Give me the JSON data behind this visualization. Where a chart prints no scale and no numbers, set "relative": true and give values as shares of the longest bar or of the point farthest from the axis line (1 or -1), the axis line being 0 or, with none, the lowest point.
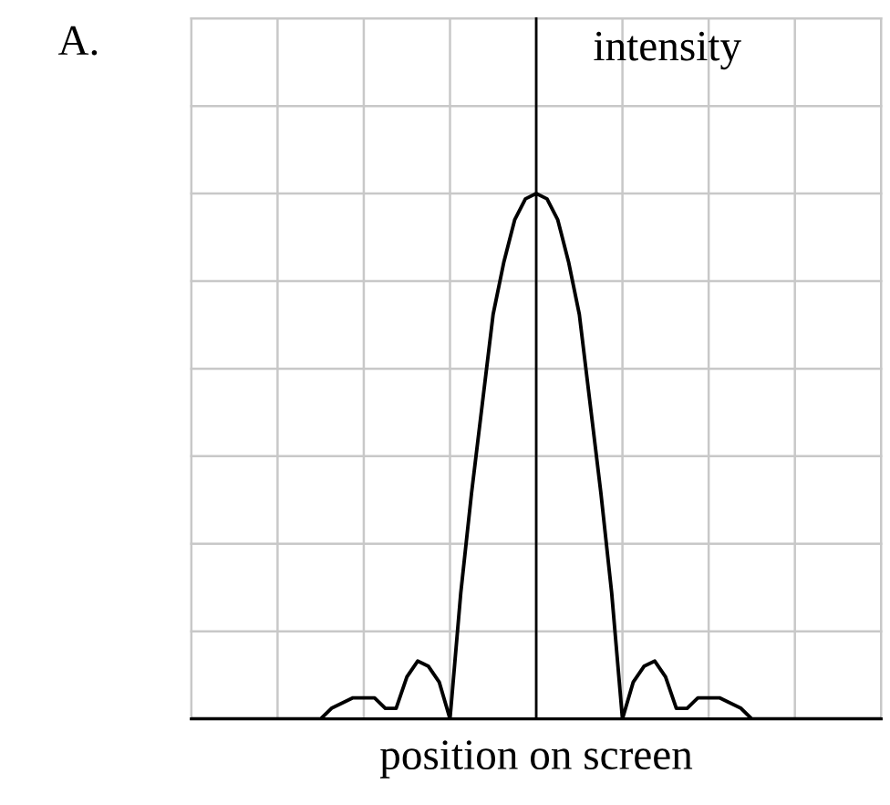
{
  "chart_data": {
    "type": "line",
    "title": "A.",
    "xlabel": "position on screen",
    "ylabel": "intensity",
    "relative": true,
    "categories": [
      null,
      null,
      null,
      null,
      null,
      null,
      null,
      null,
      null,
      null,
      null,
      null,
      null,
      null,
      null,
      null,
      null,
      null,
      null,
      null,
      null,
      null,
      null,
      null,
      null,
      null,
      null,
      null,
      null,
      null,
      null,
      null,
      null,
      null,
      null,
      null,
      null,
      null,
      null,
      null,
      null,
      null,
      null,
      null,
      null,
      null,
      null,
      null,
      null,
      null,
      null,
      null,
      null,
      null,
      null,
      null,
      null,
      null,
      null,
      null,
      null,
      null,
      null,
      null,
      null
    ],
    "values": [
      0,
      0,
      0,
      0,
      0,
      0,
      0,
      0,
      0,
      0,
      0,
      0,
      0,
      0.02,
      0.03,
      0.04,
      0.04,
      0.04,
      0.02,
      0.02,
      0.08,
      0.11,
      0.1,
      0.07,
      0,
      0.24,
      0.43,
      0.6,
      0.77,
      0.87,
      0.95,
      0.99,
      1,
      0.99,
      0.95,
      0.87,
      0.77,
      0.6,
      0.43,
      0.24,
      0,
      0.07,
      0.1,
      0.11,
      0.08,
      0.02,
      0.02,
      0.04,
      0.04,
      0.04,
      0.03,
      0.02,
      0,
      0,
      0,
      0,
      0,
      0,
      0,
      0,
      0,
      0,
      0,
      0,
      0
    ],
    "color": "#000000",
    "grid": true,
    "marker": "none",
    "line_style": "solid"
  }
}
